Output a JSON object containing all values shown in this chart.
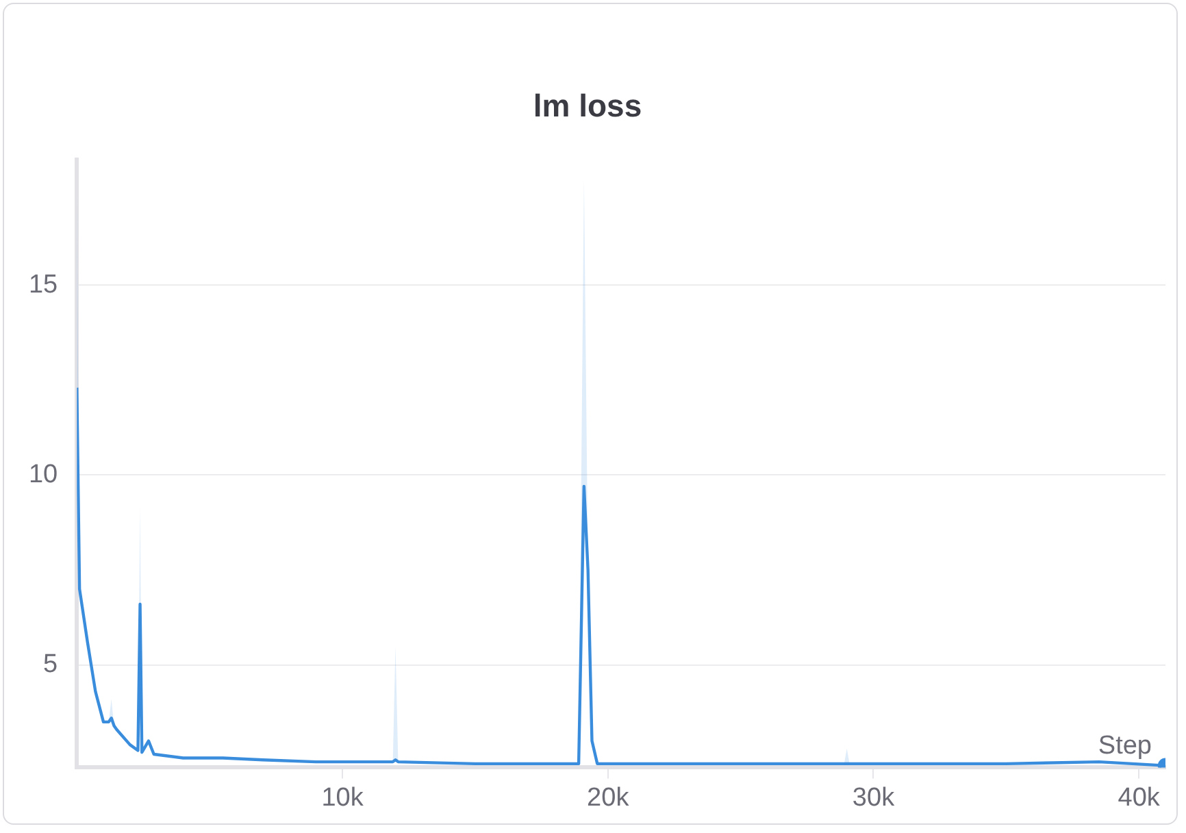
{
  "chart_data": {
    "type": "line",
    "title": "lm loss",
    "xlabel": "Step",
    "xlim": [
      0,
      41000
    ],
    "ylim": [
      2.3,
      18.3
    ],
    "xticks": [
      {
        "value": 10000,
        "label": "10k"
      },
      {
        "value": 20000,
        "label": "20k"
      },
      {
        "value": 30000,
        "label": "30k"
      },
      {
        "value": 40000,
        "label": "40k"
      }
    ],
    "yticks": [
      5,
      10,
      15
    ],
    "grid": "y",
    "legend": false,
    "series": [
      {
        "color": "#3a8ddc",
        "x": [
          0,
          100,
          400,
          700,
          1000,
          1200,
          1300,
          1400,
          1500,
          2000,
          2300,
          2380,
          2450,
          2700,
          2900,
          4000,
          5500,
          7000,
          9000,
          11900,
          12000,
          12100,
          15000,
          18900,
          19100,
          19250,
          19400,
          19600,
          22000,
          26000,
          28900,
          29000,
          29100,
          32000,
          35000,
          38500,
          41000
        ],
        "values": [
          12.3,
          7.0,
          5.6,
          4.3,
          3.5,
          3.5,
          3.6,
          3.4,
          3.3,
          2.9,
          2.75,
          6.6,
          2.7,
          3.0,
          2.65,
          2.55,
          2.55,
          2.5,
          2.45,
          2.45,
          2.5,
          2.45,
          2.4,
          2.4,
          9.7,
          7.5,
          3.0,
          2.4,
          2.4,
          2.4,
          2.4,
          2.4,
          2.4,
          2.4,
          2.4,
          2.45,
          2.35
        ],
        "lower": [
          12.3,
          7.0,
          5.6,
          4.3,
          3.5,
          3.5,
          3.6,
          3.4,
          3.3,
          2.9,
          2.75,
          6.6,
          2.7,
          3.0,
          2.65,
          2.55,
          2.55,
          2.5,
          2.45,
          2.45,
          2.5,
          2.45,
          2.4,
          2.4,
          9.7,
          7.5,
          3.0,
          2.4,
          2.4,
          2.4,
          2.4,
          2.4,
          2.4,
          2.4,
          2.4,
          2.45,
          2.35
        ],
        "upper": [
          17.5,
          7.0,
          5.6,
          4.3,
          3.5,
          3.5,
          4.1,
          3.4,
          3.3,
          2.9,
          2.75,
          9.2,
          2.7,
          3.0,
          2.65,
          2.55,
          2.55,
          2.5,
          2.45,
          2.45,
          5.5,
          2.45,
          2.4,
          2.4,
          17.8,
          7.5,
          3.0,
          2.4,
          2.4,
          2.4,
          2.4,
          2.8,
          2.4,
          2.4,
          2.4,
          2.45,
          2.35
        ]
      }
    ]
  }
}
